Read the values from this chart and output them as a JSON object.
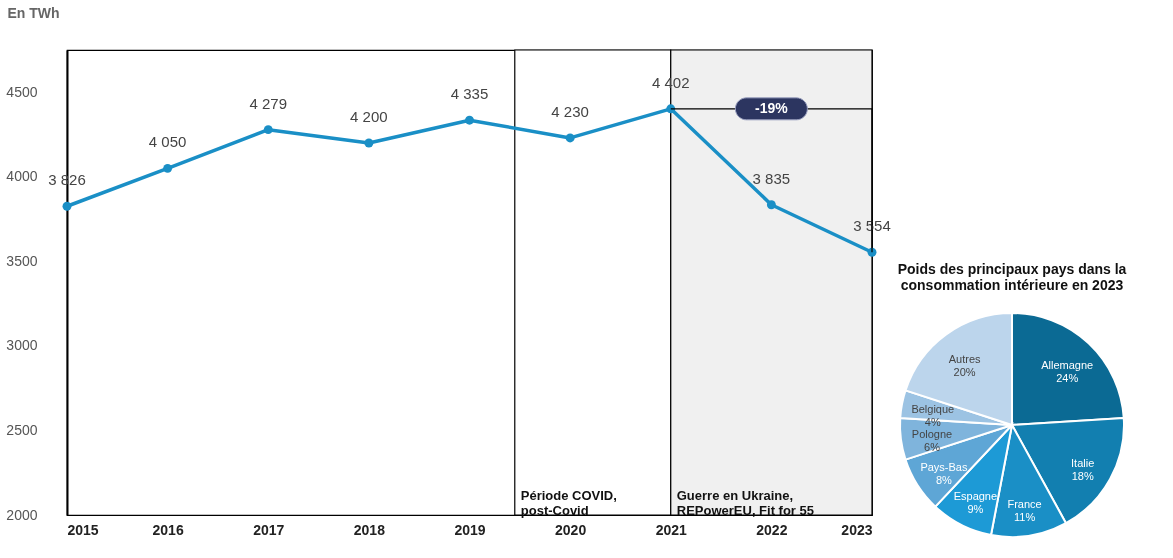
{
  "chart_data": [
    {
      "type": "line",
      "ylabel": "En TWh",
      "x": [
        2015,
        2016,
        2017,
        2018,
        2019,
        2020,
        2021,
        2022,
        2023
      ],
      "values": [
        3826,
        4050,
        4279,
        4200,
        4335,
        4230,
        4402,
        3835,
        3554
      ],
      "value_labels": [
        "3 826",
        "4 050",
        "4 279",
        "4 200",
        "4 335",
        "4 230",
        "4 402",
        "3 835",
        "3 554"
      ],
      "color": "#1a8fc6",
      "marker": "circle",
      "grid": false,
      "xlim": [
        2015,
        2023
      ],
      "xticks": [
        2015,
        2016,
        2017,
        2018,
        2019,
        2020,
        2021,
        2022,
        2023
      ],
      "ylim": [
        2000,
        4750
      ],
      "yticks": [
        2000,
        2500,
        3000,
        3500,
        4000,
        4500
      ],
      "bands": [
        {
          "axis": "x",
          "from": 2019.45,
          "to": 2021,
          "label": "Période COVID,\npost-Covid",
          "color": "#ffffff"
        },
        {
          "axis": "x",
          "from": 2021,
          "to": 2023,
          "label": "Guerre en Ukraine,\nREPowerEU, Fit for 55",
          "color": "#f0f0f0"
        }
      ],
      "annotations": [
        "-19%"
      ]
    },
    {
      "type": "pie",
      "title": "Poids des principaux pays dans la\nconsommation intérieure en 2023",
      "categories": [
        "Allemagne",
        "Italie",
        "France",
        "Espagne",
        "Pays-Bas",
        "Pologne",
        "Belgique",
        "Autres"
      ],
      "values": [
        24,
        18,
        11,
        9,
        8,
        6,
        4,
        20
      ],
      "colors": [
        "#0b6a94",
        "#127fb0",
        "#1a8fc6",
        "#1d9ad6",
        "#5ea6d6",
        "#7fb4dc",
        "#9cc3e3",
        "#bcd5ec"
      ],
      "value_labels": [
        "24%",
        "18%",
        "11%",
        "9%",
        "8%",
        "6%",
        "4%",
        "20%"
      ]
    }
  ]
}
